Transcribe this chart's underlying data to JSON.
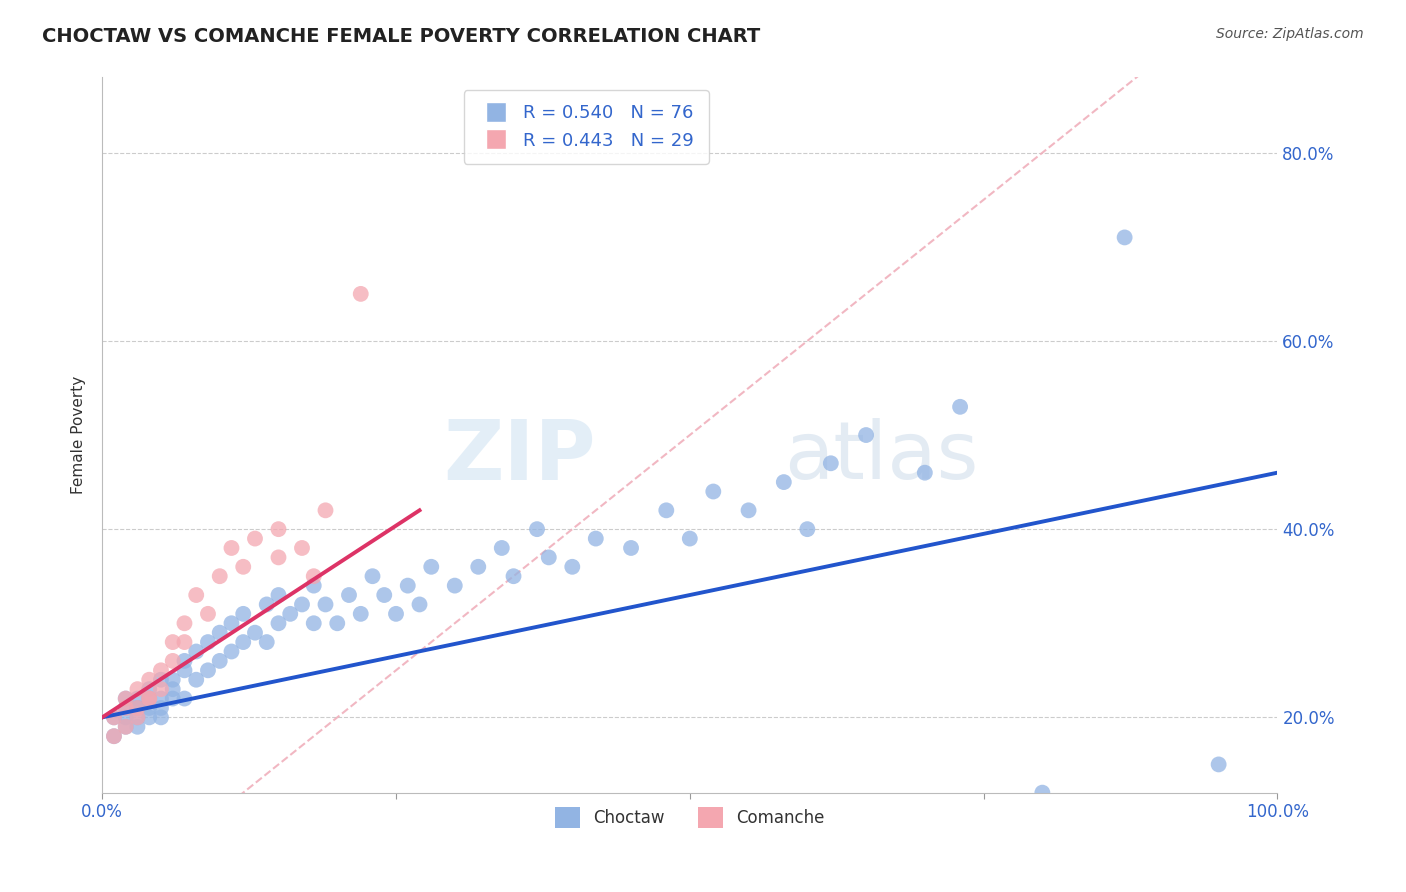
{
  "title": "CHOCTAW VS COMANCHE FEMALE POVERTY CORRELATION CHART",
  "source": "Source: ZipAtlas.com",
  "ylabel": "Female Poverty",
  "ytick_labels": [
    "20.0%",
    "40.0%",
    "60.0%",
    "80.0%"
  ],
  "ytick_values": [
    0.2,
    0.4,
    0.6,
    0.8
  ],
  "xlim": [
    0.0,
    1.0
  ],
  "ylim": [
    0.12,
    0.88
  ],
  "choctaw_R": 0.54,
  "choctaw_N": 76,
  "comanche_R": 0.443,
  "comanche_N": 29,
  "choctaw_color": "#92b4e3",
  "comanche_color": "#f4a7b0",
  "choctaw_line_color": "#2255cc",
  "comanche_line_color": "#dd3366",
  "ref_line_color": "#f0b0bc",
  "background_color": "#ffffff",
  "grid_color": "#cccccc",
  "watermark": "ZIPatlas",
  "title_fontsize": 14,
  "choctaw_x": [
    0.01,
    0.01,
    0.02,
    0.02,
    0.02,
    0.02,
    0.03,
    0.03,
    0.03,
    0.03,
    0.03,
    0.04,
    0.04,
    0.04,
    0.04,
    0.05,
    0.05,
    0.05,
    0.05,
    0.06,
    0.06,
    0.06,
    0.07,
    0.07,
    0.07,
    0.08,
    0.08,
    0.09,
    0.09,
    0.1,
    0.1,
    0.11,
    0.11,
    0.12,
    0.12,
    0.13,
    0.14,
    0.14,
    0.15,
    0.15,
    0.16,
    0.17,
    0.18,
    0.18,
    0.19,
    0.2,
    0.21,
    0.22,
    0.23,
    0.24,
    0.25,
    0.26,
    0.27,
    0.28,
    0.3,
    0.32,
    0.34,
    0.35,
    0.37,
    0.38,
    0.4,
    0.42,
    0.45,
    0.48,
    0.5,
    0.52,
    0.55,
    0.58,
    0.6,
    0.62,
    0.65,
    0.7,
    0.73,
    0.8,
    0.87,
    0.95
  ],
  "choctaw_y": [
    0.2,
    0.18,
    0.22,
    0.21,
    0.19,
    0.2,
    0.21,
    0.2,
    0.22,
    0.19,
    0.21,
    0.22,
    0.2,
    0.23,
    0.21,
    0.22,
    0.2,
    0.24,
    0.21,
    0.22,
    0.24,
    0.23,
    0.25,
    0.22,
    0.26,
    0.24,
    0.27,
    0.25,
    0.28,
    0.26,
    0.29,
    0.27,
    0.3,
    0.28,
    0.31,
    0.29,
    0.28,
    0.32,
    0.3,
    0.33,
    0.31,
    0.32,
    0.3,
    0.34,
    0.32,
    0.3,
    0.33,
    0.31,
    0.35,
    0.33,
    0.31,
    0.34,
    0.32,
    0.36,
    0.34,
    0.36,
    0.38,
    0.35,
    0.4,
    0.37,
    0.36,
    0.39,
    0.38,
    0.42,
    0.39,
    0.44,
    0.42,
    0.45,
    0.4,
    0.47,
    0.5,
    0.46,
    0.53,
    0.12,
    0.71,
    0.15
  ],
  "comanche_x": [
    0.01,
    0.01,
    0.02,
    0.02,
    0.02,
    0.03,
    0.03,
    0.03,
    0.04,
    0.04,
    0.04,
    0.05,
    0.05,
    0.06,
    0.06,
    0.07,
    0.07,
    0.08,
    0.09,
    0.1,
    0.11,
    0.12,
    0.13,
    0.15,
    0.17,
    0.19,
    0.15,
    0.18,
    0.22
  ],
  "comanche_y": [
    0.2,
    0.18,
    0.22,
    0.21,
    0.19,
    0.21,
    0.2,
    0.23,
    0.22,
    0.24,
    0.22,
    0.25,
    0.23,
    0.28,
    0.26,
    0.3,
    0.28,
    0.33,
    0.31,
    0.35,
    0.38,
    0.36,
    0.39,
    0.4,
    0.38,
    0.42,
    0.37,
    0.35,
    0.65
  ],
  "choctaw_line_x": [
    0.0,
    1.0
  ],
  "choctaw_line_y": [
    0.2,
    0.46
  ],
  "comanche_line_x": [
    0.0,
    0.27
  ],
  "comanche_line_y": [
    0.2,
    0.42
  ]
}
